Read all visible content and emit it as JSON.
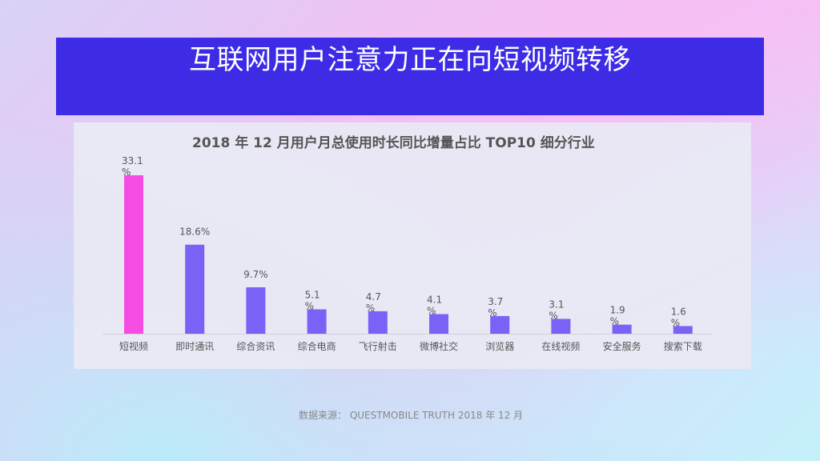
{
  "page": {
    "title": "互联网用户注意力正在向短视频转移",
    "source": "数据来源： QUESTMOBILE TRUTH 2018 年 12 月"
  },
  "colors": {
    "title_bar": "#3d2be6",
    "highlight_bar": "#f54de3",
    "bar": "#7a62f7",
    "label": "#555555"
  },
  "chart_data": {
    "type": "bar",
    "title": "2018 年 12 月用户月总使用时长同比增量占比 TOP10 细分行业",
    "categories": [
      "短视频",
      "即时通讯",
      "综合资讯",
      "综合电商",
      "飞行射击",
      "微博社交",
      "浏览器",
      "在线视频",
      "安全服务",
      "搜索下载"
    ],
    "values": [
      33.1,
      18.6,
      9.7,
      5.1,
      4.7,
      4.1,
      3.7,
      3.1,
      1.9,
      1.6
    ],
    "data_labels": [
      "33.1%",
      "18.6%",
      "9.7%",
      "5.1%",
      "4.7%",
      "4.1%",
      "3.7%",
      "3.1%",
      "1.9%",
      "1.6%"
    ],
    "value_unit": "%",
    "highlight_index": 0,
    "xlabel": "",
    "ylabel": "",
    "ylim": [
      0,
      35
    ],
    "grid": false,
    "legend": "none"
  }
}
